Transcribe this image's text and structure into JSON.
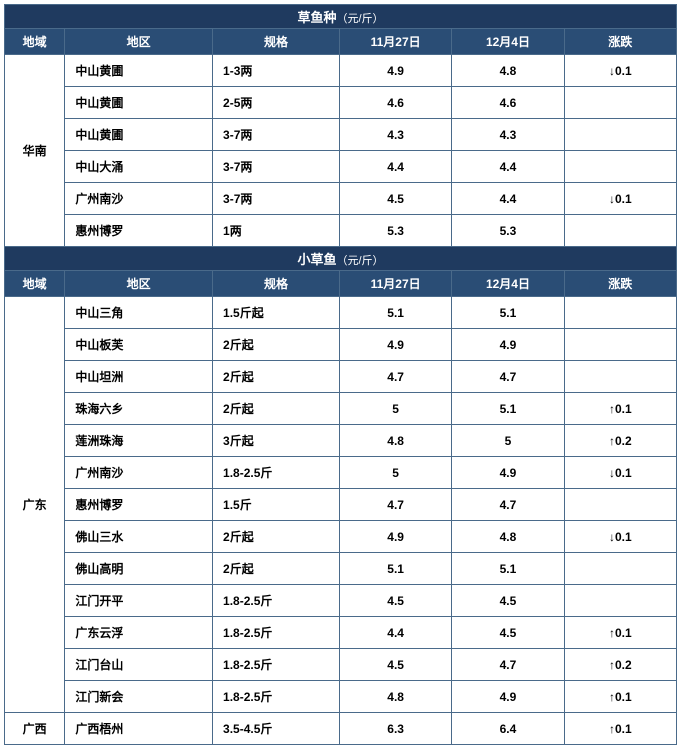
{
  "sections": [
    {
      "title": "草鱼种",
      "unit": "（元/斤）",
      "headers": [
        "地域",
        "地区",
        "规格",
        "11月27日",
        "12月4日",
        "涨跌"
      ],
      "groups": [
        {
          "region": "华南",
          "rows": [
            {
              "area": "中山黄圃",
              "spec": "1-3两",
              "d1": "4.9",
              "d2": "4.8",
              "chg": "0.1",
              "dir": "down"
            },
            {
              "area": "中山黄圃",
              "spec": "2-5两",
              "d1": "4.6",
              "d2": "4.6",
              "chg": "",
              "dir": ""
            },
            {
              "area": "中山黄圃",
              "spec": "3-7两",
              "d1": "4.3",
              "d2": "4.3",
              "chg": "",
              "dir": ""
            },
            {
              "area": "中山大涌",
              "spec": "3-7两",
              "d1": "4.4",
              "d2": "4.4",
              "chg": "",
              "dir": ""
            },
            {
              "area": "广州南沙",
              "spec": "3-7两",
              "d1": "4.5",
              "d2": "4.4",
              "chg": "0.1",
              "dir": "down"
            },
            {
              "area": "惠州博罗",
              "spec": "1两",
              "d1": "5.3",
              "d2": "5.3",
              "chg": "",
              "dir": ""
            }
          ]
        }
      ]
    },
    {
      "title": "小草鱼",
      "unit": "（元/斤）",
      "headers": [
        "地域",
        "地区",
        "规格",
        "11月27日",
        "12月4日",
        "涨跌"
      ],
      "groups": [
        {
          "region": "广东",
          "rows": [
            {
              "area": "中山三角",
              "spec": "1.5斤起",
              "d1": "5.1",
              "d2": "5.1",
              "chg": "",
              "dir": ""
            },
            {
              "area": "中山板芙",
              "spec": "2斤起",
              "d1": "4.9",
              "d2": "4.9",
              "chg": "",
              "dir": ""
            },
            {
              "area": "中山坦洲",
              "spec": "2斤起",
              "d1": "4.7",
              "d2": "4.7",
              "chg": "",
              "dir": ""
            },
            {
              "area": "珠海六乡",
              "spec": "2斤起",
              "d1": "5",
              "d2": "5.1",
              "chg": "0.1",
              "dir": "up"
            },
            {
              "area": "莲洲珠海",
              "spec": "3斤起",
              "d1": "4.8",
              "d2": "5",
              "chg": "0.2",
              "dir": "up"
            },
            {
              "area": "广州南沙",
              "spec": "1.8-2.5斤",
              "d1": "5",
              "d2": "4.9",
              "chg": "0.1",
              "dir": "down"
            },
            {
              "area": "惠州博罗",
              "spec": "1.5斤",
              "d1": "4.7",
              "d2": "4.7",
              "chg": "",
              "dir": ""
            },
            {
              "area": "佛山三水",
              "spec": "2斤起",
              "d1": "4.9",
              "d2": "4.8",
              "chg": "0.1",
              "dir": "down"
            },
            {
              "area": "佛山高明",
              "spec": "2斤起",
              "d1": "5.1",
              "d2": "5.1",
              "chg": "",
              "dir": ""
            },
            {
              "area": "江门开平",
              "spec": "1.8-2.5斤",
              "d1": "4.5",
              "d2": "4.5",
              "chg": "",
              "dir": ""
            },
            {
              "area": "广东云浮",
              "spec": "1.8-2.5斤",
              "d1": "4.4",
              "d2": "4.5",
              "chg": "0.1",
              "dir": "up"
            },
            {
              "area": "江门台山",
              "spec": "1.8-2.5斤",
              "d1": "4.5",
              "d2": "4.7",
              "chg": "0.2",
              "dir": "up"
            },
            {
              "area": "江门新会",
              "spec": "1.8-2.5斤",
              "d1": "4.8",
              "d2": "4.9",
              "chg": "0.1",
              "dir": "up"
            }
          ]
        },
        {
          "region": "广西",
          "rows": [
            {
              "area": "广西梧州",
              "spec": "3.5-4.5斤",
              "d1": "6.3",
              "d2": "6.4",
              "chg": "0.1",
              "dir": "up"
            }
          ]
        }
      ]
    }
  ],
  "arrows": {
    "up": "↑",
    "down": "↓"
  }
}
